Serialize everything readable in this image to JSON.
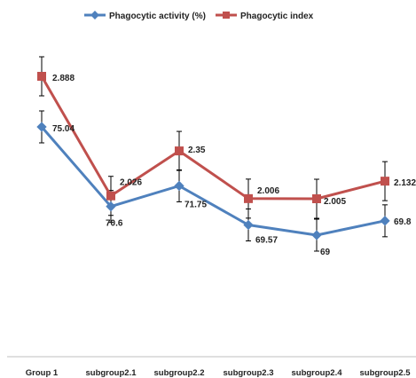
{
  "chart_data": {
    "type": "line",
    "title": "",
    "xlabel": "",
    "ylabel": "",
    "categories": [
      "Group 1",
      "subgroup2.1",
      "subgroup2.2",
      "subgroup2.3",
      "subgroup2.4",
      "subgroup2.5"
    ],
    "legend_position": "top-center",
    "grid": false,
    "series": [
      {
        "name": "Phagocytic activity (%)",
        "color": "#4F81BD",
        "marker": "diamond",
        "values": [
          75.04,
          70.6,
          71.75,
          69.57,
          69,
          69.8
        ],
        "labels": [
          "75.04",
          "70.6",
          "71.75",
          "69.57",
          "69",
          "69.8"
        ],
        "error_bars": true
      },
      {
        "name": "Phagocytic index",
        "color": "#C0504D",
        "marker": "square",
        "values": [
          2.888,
          2.026,
          2.35,
          2.006,
          2.005,
          2.132
        ],
        "labels": [
          "2.888",
          "2.026",
          "2.35",
          "2.006",
          "2.005",
          "2.132"
        ],
        "error_bars": true
      }
    ]
  }
}
